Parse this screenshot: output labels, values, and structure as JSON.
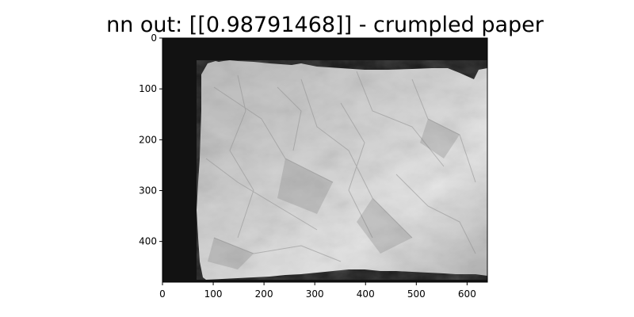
{
  "figure": {
    "title": "nn out: [[0.98791468]] - crumpled paper"
  },
  "image": {
    "subject": "crumpled paper",
    "colormap": "gray",
    "background_color": "#111111",
    "paper_color": "#c8c8c8"
  },
  "axes": {
    "x_ticks": [
      "0",
      "100",
      "200",
      "300",
      "400",
      "500",
      "600"
    ],
    "y_ticks": [
      "0",
      "100",
      "200",
      "300",
      "400"
    ]
  }
}
